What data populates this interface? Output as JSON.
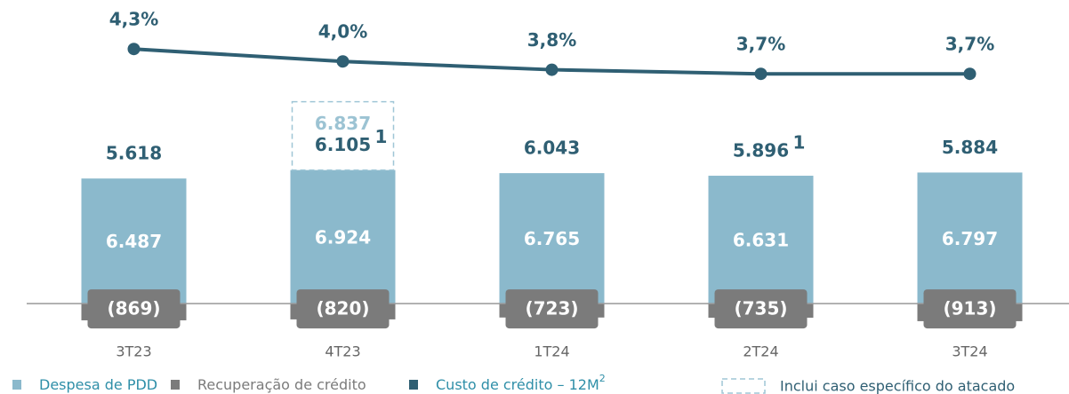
{
  "chart_data": {
    "type": "bar",
    "categories": [
      "3T23",
      "4T23",
      "1T24",
      "2T24",
      "3T24"
    ],
    "series": [
      {
        "name": "Despesa de PDD",
        "color": "#8bb9cc",
        "values": [
          6487,
          6924,
          6765,
          6631,
          6797
        ],
        "value_labels": [
          "6.487",
          "6.924",
          "6.765",
          "6.631",
          "6.797"
        ]
      },
      {
        "name": "Recuperação de crédito",
        "color": "#7b7b7b",
        "values": [
          -869,
          -820,
          -723,
          -735,
          -913
        ],
        "value_labels": [
          "(869)",
          "(820)",
          "(723)",
          "(735)",
          "(913)"
        ]
      },
      {
        "name": "Custo de crédito – 12M",
        "name_note": "2",
        "type": "line",
        "axis": "y2",
        "color": "#2f5f73",
        "values": [
          4.3,
          4.0,
          3.8,
          3.7,
          3.7
        ],
        "value_labels": [
          "4,3%",
          "4,0%",
          "3,8%",
          "3,7%",
          "3,7%"
        ]
      }
    ],
    "totals": {
      "values": [
        5618,
        6105,
        6043,
        5896,
        5884
      ],
      "value_labels": [
        "5.618",
        "6.105",
        "6.043",
        "5.896",
        "5.884"
      ],
      "notes": [
        null,
        "1",
        null,
        "1",
        null
      ]
    },
    "special_case": {
      "name": "Inclui caso específico do atacado",
      "values": [
        null,
        6837,
        null,
        null,
        null
      ],
      "value_labels": [
        null,
        "6.837",
        null,
        null,
        null
      ]
    },
    "ylim": [
      -4000,
      15700
    ],
    "y2lim": [
      -3.7,
      5.46
    ]
  }
}
